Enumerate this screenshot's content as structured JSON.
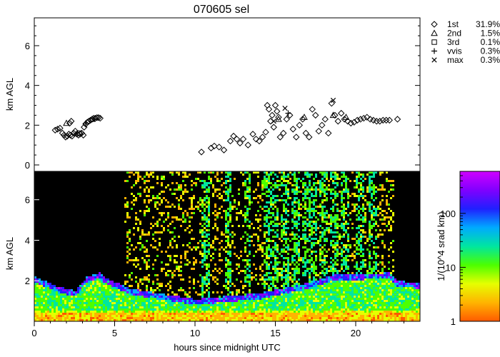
{
  "title": "070605 sel",
  "chart_data": [
    {
      "type": "scatter",
      "ylabel": "km AGL",
      "xlim": [
        0,
        24
      ],
      "ylim": [
        0,
        7.4
      ],
      "yticks": [
        0,
        2,
        4,
        6
      ],
      "legend_position": "top-right",
      "series": [
        {
          "name": "1st",
          "percent": "31.9%",
          "marker": "diamond",
          "points": [
            [
              1.3,
              1.75
            ],
            [
              1.45,
              1.8
            ],
            [
              1.6,
              1.85
            ],
            [
              1.75,
              1.6
            ],
            [
              1.85,
              1.5
            ],
            [
              1.95,
              1.4
            ],
            [
              2.05,
              1.45
            ],
            [
              2.15,
              1.55
            ],
            [
              2.25,
              1.5
            ],
            [
              2.35,
              1.45
            ],
            [
              2.45,
              1.6
            ],
            [
              2.55,
              1.7
            ],
            [
              2.65,
              1.55
            ],
            [
              2.75,
              1.5
            ],
            [
              2.85,
              1.55
            ],
            [
              2.95,
              1.6
            ],
            [
              3.05,
              1.5
            ],
            [
              3.1,
              1.9
            ],
            [
              3.2,
              2.05
            ],
            [
              3.3,
              2.15
            ],
            [
              3.4,
              2.2
            ],
            [
              3.5,
              2.25
            ],
            [
              3.6,
              2.3
            ],
            [
              3.7,
              2.35
            ],
            [
              3.8,
              2.35
            ],
            [
              3.9,
              2.38
            ],
            [
              4.0,
              2.38
            ],
            [
              4.1,
              2.35
            ],
            [
              2.2,
              2.1
            ],
            [
              2.3,
              2.2
            ],
            [
              10.4,
              0.65
            ],
            [
              11.0,
              0.85
            ],
            [
              11.2,
              0.95
            ],
            [
              11.5,
              0.9
            ],
            [
              11.8,
              0.75
            ],
            [
              12.2,
              1.2
            ],
            [
              12.4,
              1.45
            ],
            [
              12.6,
              1.3
            ],
            [
              12.8,
              1.1
            ],
            [
              13.0,
              1.3
            ],
            [
              13.3,
              1.0
            ],
            [
              13.6,
              1.55
            ],
            [
              13.8,
              1.3
            ],
            [
              14.0,
              1.2
            ],
            [
              14.2,
              1.4
            ],
            [
              14.4,
              1.65
            ],
            [
              14.5,
              3.0
            ],
            [
              14.6,
              2.8
            ],
            [
              14.7,
              2.2
            ],
            [
              14.8,
              2.5
            ],
            [
              14.9,
              1.9
            ],
            [
              15.0,
              3.0
            ],
            [
              15.1,
              2.7
            ],
            [
              15.2,
              2.4
            ],
            [
              15.3,
              1.4
            ],
            [
              15.5,
              1.6
            ],
            [
              15.7,
              2.3
            ],
            [
              15.9,
              2.5
            ],
            [
              16.1,
              1.8
            ],
            [
              16.3,
              1.4
            ],
            [
              16.5,
              2.0
            ],
            [
              16.7,
              2.3
            ],
            [
              16.9,
              1.6
            ],
            [
              17.1,
              1.4
            ],
            [
              17.3,
              2.8
            ],
            [
              17.5,
              2.5
            ],
            [
              17.7,
              1.7
            ],
            [
              17.9,
              2.0
            ],
            [
              18.1,
              2.3
            ],
            [
              18.3,
              1.6
            ],
            [
              18.5,
              3.1
            ],
            [
              18.7,
              2.5
            ],
            [
              18.9,
              2.2
            ],
            [
              19.1,
              2.6
            ],
            [
              19.3,
              2.3
            ],
            [
              19.5,
              2.2
            ],
            [
              19.7,
              2.1
            ],
            [
              19.9,
              2.15
            ],
            [
              20.1,
              2.25
            ],
            [
              20.3,
              2.3
            ],
            [
              20.5,
              2.35
            ],
            [
              20.7,
              2.4
            ],
            [
              20.9,
              2.3
            ],
            [
              21.1,
              2.25
            ],
            [
              21.3,
              2.2
            ],
            [
              21.5,
              2.2
            ],
            [
              21.7,
              2.25
            ],
            [
              21.9,
              2.25
            ],
            [
              22.1,
              2.25
            ],
            [
              22.6,
              2.3
            ]
          ]
        },
        {
          "name": "2nd",
          "percent": "1.5%",
          "marker": "triangle",
          "points": [
            [
              2.0,
              2.1
            ],
            [
              3.6,
              2.3
            ],
            [
              15.2,
              2.3
            ],
            [
              16.8,
              2.4
            ],
            [
              18.6,
              2.5
            ],
            [
              19.4,
              2.4
            ]
          ]
        },
        {
          "name": "3rd",
          "percent": "0.1%",
          "marker": "square",
          "points": [
            [
              2.8,
              1.6
            ]
          ]
        },
        {
          "name": "vvis",
          "percent": "0.3%",
          "marker": "plus",
          "points": [
            [
              3.2,
              2.1
            ],
            [
              15.8,
              2.6
            ]
          ]
        },
        {
          "name": "max",
          "percent": "0.3%",
          "marker": "cross",
          "points": [
            [
              15.6,
              2.85
            ],
            [
              18.6,
              3.25
            ],
            [
              14.9,
              2.2
            ]
          ]
        }
      ]
    },
    {
      "type": "heatmap",
      "xlabel": "hours since midnight UTC",
      "ylabel": "km AGL",
      "xlim": [
        0,
        24
      ],
      "ylim": [
        0,
        7.4
      ],
      "xticks": [
        0,
        5,
        10,
        15,
        20
      ],
      "yticks": [
        2,
        4,
        6
      ],
      "colorbar": {
        "label": "1/(10^4 srad km)",
        "scale": "log",
        "ticks": [
          1,
          10,
          100
        ],
        "range": [
          1,
          600
        ],
        "colors": [
          "#ff5a00",
          "#ffb400",
          "#e6ff00",
          "#4cff00",
          "#00e6a0",
          "#00aaff",
          "#2020ff",
          "#8000ff",
          "#d000ff"
        ]
      },
      "cloud_base_km": [
        [
          0,
          2.1
        ],
        [
          1.5,
          1.6
        ],
        [
          2.5,
          1.4
        ],
        [
          3.2,
          2.1
        ],
        [
          4.0,
          2.3
        ],
        [
          4.5,
          2.0
        ],
        [
          6,
          1.5
        ],
        [
          10,
          1.0
        ],
        [
          14,
          1.3
        ],
        [
          17,
          1.8
        ],
        [
          18.5,
          2.2
        ],
        [
          22,
          2.3
        ],
        [
          22.5,
          1.9
        ],
        [
          24,
          1.8
        ]
      ]
    }
  ]
}
